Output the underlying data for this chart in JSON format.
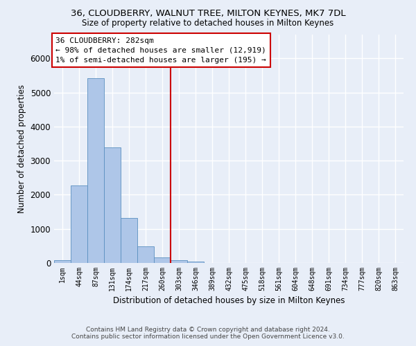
{
  "title": "36, CLOUDBERRY, WALNUT TREE, MILTON KEYNES, MK7 7DL",
  "subtitle": "Size of property relative to detached houses in Milton Keynes",
  "xlabel": "Distribution of detached houses by size in Milton Keynes",
  "ylabel": "Number of detached properties",
  "footer_line1": "Contains HM Land Registry data © Crown copyright and database right 2024.",
  "footer_line2": "Contains public sector information licensed under the Open Government Licence v3.0.",
  "bin_labels": [
    "1sqm",
    "44sqm",
    "87sqm",
    "131sqm",
    "174sqm",
    "217sqm",
    "260sqm",
    "303sqm",
    "346sqm",
    "389sqm",
    "432sqm",
    "475sqm",
    "518sqm",
    "561sqm",
    "604sqm",
    "648sqm",
    "691sqm",
    "734sqm",
    "777sqm",
    "820sqm",
    "863sqm"
  ],
  "bar_values": [
    75,
    2280,
    5420,
    3390,
    1310,
    480,
    165,
    90,
    50,
    10,
    5,
    0,
    0,
    0,
    0,
    0,
    0,
    0,
    0,
    0,
    0
  ],
  "bar_color": "#aec6e8",
  "bar_edgecolor": "#5a8fc0",
  "property_line_x": 6.5,
  "annotation_text_line1": "36 CLOUDBERRY: 282sqm",
  "annotation_text_line2": "← 98% of detached houses are smaller (12,919)",
  "annotation_text_line3": "1% of semi-detached houses are larger (195) →",
  "annotation_box_color": "#ffffff",
  "annotation_box_edgecolor": "#cc0000",
  "vline_color": "#cc0000",
  "ylim": [
    0,
    6700
  ],
  "background_color": "#e8eef8",
  "grid_color": "#ffffff"
}
